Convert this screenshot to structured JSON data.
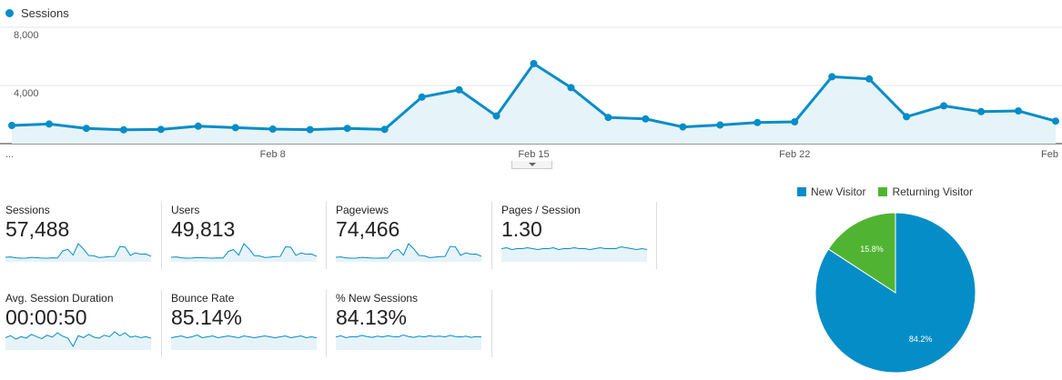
{
  "legend": {
    "label": "Sessions",
    "color": "#058dc7"
  },
  "chart_data": [
    {
      "type": "area",
      "series": [
        {
          "name": "Sessions",
          "values": [
            1250,
            1350,
            1050,
            950,
            980,
            1200,
            1100,
            1000,
            960,
            1050,
            980,
            3200,
            3700,
            1900,
            5500,
            3850,
            1800,
            1700,
            1150,
            1280,
            1450,
            1500,
            4600,
            4450,
            1850,
            2600,
            2200,
            2250,
            1550
          ]
        }
      ],
      "ylim": [
        0,
        8000
      ],
      "yticks": [
        "8,000",
        "4,000"
      ],
      "xticks": [
        {
          "label": "...",
          "index": 0
        },
        {
          "label": "Feb 8",
          "index": 7
        },
        {
          "label": "Feb 15",
          "index": 14
        },
        {
          "label": "Feb 22",
          "index": 21
        },
        {
          "label": "Feb",
          "index": 28
        }
      ],
      "grid": true,
      "color": "#058dc7",
      "fill": "#e6f3f9"
    },
    {
      "type": "pie",
      "slices": [
        {
          "name": "New Visitor",
          "value": 84.2,
          "label": "84.2%",
          "color": "#058dc7"
        },
        {
          "name": "Returning Visitor",
          "value": 15.8,
          "label": "15.8%",
          "color": "#50b432"
        }
      ],
      "legend": "top"
    }
  ],
  "metrics": [
    {
      "label": "Sessions",
      "value": "57,488",
      "spark": [
        1250,
        1350,
        1050,
        950,
        980,
        1200,
        1100,
        1000,
        960,
        1050,
        980,
        3200,
        3700,
        1900,
        5500,
        3850,
        1800,
        1700,
        1150,
        1280,
        1450,
        1500,
        4600,
        4450,
        1850,
        2600,
        2200,
        2250,
        1550
      ]
    },
    {
      "label": "Users",
      "value": "49,813",
      "spark": [
        1100,
        1200,
        950,
        850,
        880,
        1050,
        980,
        900,
        860,
        950,
        880,
        2800,
        3300,
        1700,
        5000,
        3500,
        1600,
        1500,
        1050,
        1150,
        1300,
        1350,
        4100,
        4000,
        1650,
        2350,
        2000,
        2050,
        1400
      ]
    },
    {
      "label": "Pageviews",
      "value": "74,466",
      "spark": [
        1600,
        1750,
        1350,
        1250,
        1300,
        1550,
        1450,
        1300,
        1250,
        1350,
        1280,
        4100,
        4800,
        2450,
        7100,
        5000,
        2350,
        2200,
        1500,
        1650,
        1900,
        1950,
        6000,
        5800,
        2400,
        3400,
        2850,
        2900,
        2000
      ]
    },
    {
      "label": "Pages / Session",
      "value": "1.30",
      "spark": [
        1.3,
        1.31,
        1.29,
        1.3,
        1.3,
        1.31,
        1.3,
        1.29,
        1.3,
        1.3,
        1.31,
        1.29,
        1.3,
        1.3,
        1.31,
        1.3,
        1.3,
        1.29,
        1.3,
        1.31,
        1.3,
        1.3,
        1.3,
        1.32,
        1.31,
        1.3,
        1.29,
        1.3,
        1.29
      ]
    },
    {
      "label": "Avg. Session Duration",
      "value": "00:00:50",
      "spark": [
        48,
        52,
        45,
        50,
        47,
        55,
        50,
        46,
        53,
        49,
        58,
        51,
        47,
        30,
        52,
        48,
        55,
        49,
        47,
        53,
        50,
        60,
        52,
        58,
        49,
        51,
        48,
        50,
        47
      ]
    },
    {
      "label": "Bounce Rate",
      "value": "85.14%",
      "spark": [
        85,
        85.1,
        85.2,
        85,
        85.1,
        85.3,
        85,
        85.1,
        85.2,
        85,
        85.1,
        85.2,
        85.1,
        85,
        85.2,
        85.1,
        85,
        85.1,
        85.2,
        85.1,
        85,
        85.1,
        85.2,
        85,
        85.1,
        85.2,
        85,
        85.1,
        85
      ]
    },
    {
      "label": "% New Sessions",
      "value": "84.13%",
      "spark": [
        84,
        84.3,
        83.8,
        84.1,
        84,
        84.4,
        84.1,
        83.9,
        84.2,
        84,
        84.3,
        84.1,
        84,
        84.5,
        84.1,
        83.9,
        84.2,
        84,
        84.3,
        84.1,
        84.2,
        84,
        84.4,
        84.1,
        84,
        84.2,
        83.9,
        84.1,
        84
      ]
    }
  ]
}
